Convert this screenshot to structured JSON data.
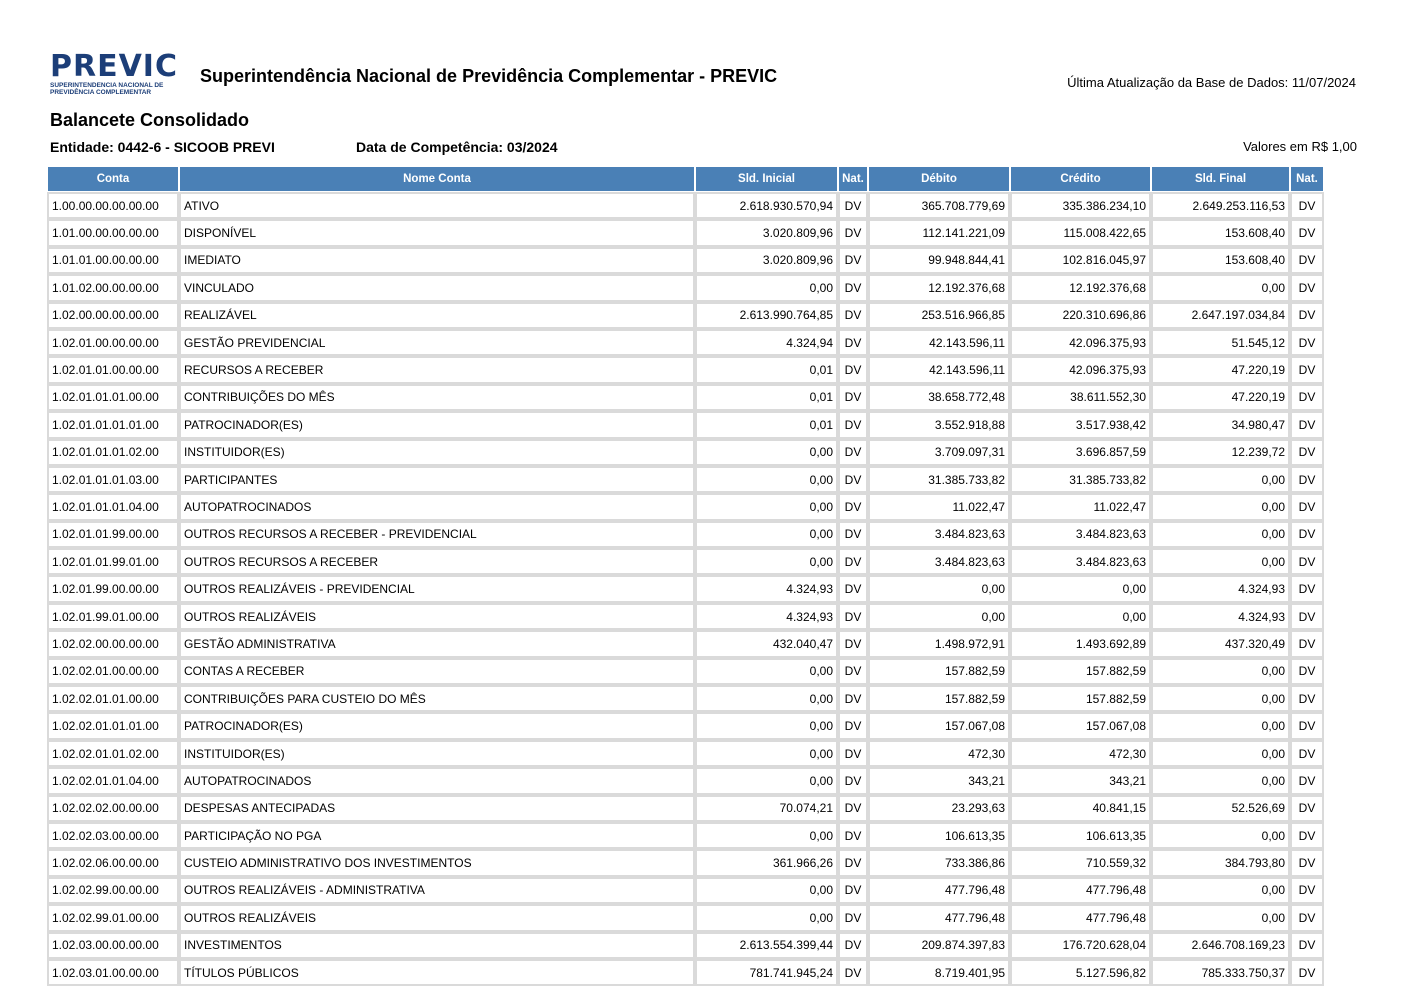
{
  "header": {
    "logo_text": "PREVIC",
    "logo_subtitle_1": "SUPERINTENDENCIA NACIONAL DE",
    "logo_subtitle_2": "PREVIDÊNCIA COMPLEMENTAR",
    "org_title": "Superintendência Nacional de Previdência Complementar - PREVIC",
    "last_update": "Última Atualização da Base de Dados: 11/07/2024"
  },
  "report": {
    "title": "Balancete Consolidado",
    "entity": "Entidade: 0442-6 - SICOOB PREVI",
    "competence": "Data de Competência: 03/2024",
    "units": "Valores em R$ 1,00"
  },
  "table": {
    "columns": [
      "Conta",
      "Nome Conta",
      "Sld. Inicial",
      "Nat.",
      "Débito",
      "Crédito",
      "Sld. Final",
      "Nat."
    ],
    "rows": [
      [
        "1.00.00.00.00.00.00",
        "ATIVO",
        "2.618.930.570,94",
        "DV",
        "365.708.779,69",
        "335.386.234,10",
        "2.649.253.116,53",
        "DV"
      ],
      [
        "1.01.00.00.00.00.00",
        "DISPONÍVEL",
        "3.020.809,96",
        "DV",
        "112.141.221,09",
        "115.008.422,65",
        "153.608,40",
        "DV"
      ],
      [
        "1.01.01.00.00.00.00",
        "IMEDIATO",
        "3.020.809,96",
        "DV",
        "99.948.844,41",
        "102.816.045,97",
        "153.608,40",
        "DV"
      ],
      [
        "1.01.02.00.00.00.00",
        "VINCULADO",
        "0,00",
        "DV",
        "12.192.376,68",
        "12.192.376,68",
        "0,00",
        "DV"
      ],
      [
        "1.02.00.00.00.00.00",
        "REALIZÁVEL",
        "2.613.990.764,85",
        "DV",
        "253.516.966,85",
        "220.310.696,86",
        "2.647.197.034,84",
        "DV"
      ],
      [
        "1.02.01.00.00.00.00",
        "GESTÃO PREVIDENCIAL",
        "4.324,94",
        "DV",
        "42.143.596,11",
        "42.096.375,93",
        "51.545,12",
        "DV"
      ],
      [
        "1.02.01.01.00.00.00",
        "RECURSOS A RECEBER",
        "0,01",
        "DV",
        "42.143.596,11",
        "42.096.375,93",
        "47.220,19",
        "DV"
      ],
      [
        "1.02.01.01.01.00.00",
        "CONTRIBUIÇÕES DO MÊS",
        "0,01",
        "DV",
        "38.658.772,48",
        "38.611.552,30",
        "47.220,19",
        "DV"
      ],
      [
        "1.02.01.01.01.01.00",
        "PATROCINADOR(ES)",
        "0,01",
        "DV",
        "3.552.918,88",
        "3.517.938,42",
        "34.980,47",
        "DV"
      ],
      [
        "1.02.01.01.01.02.00",
        "INSTITUIDOR(ES)",
        "0,00",
        "DV",
        "3.709.097,31",
        "3.696.857,59",
        "12.239,72",
        "DV"
      ],
      [
        "1.02.01.01.01.03.00",
        "PARTICIPANTES",
        "0,00",
        "DV",
        "31.385.733,82",
        "31.385.733,82",
        "0,00",
        "DV"
      ],
      [
        "1.02.01.01.01.04.00",
        "AUTOPATROCINADOS",
        "0,00",
        "DV",
        "11.022,47",
        "11.022,47",
        "0,00",
        "DV"
      ],
      [
        "1.02.01.01.99.00.00",
        "OUTROS RECURSOS A RECEBER - PREVIDENCIAL",
        "0,00",
        "DV",
        "3.484.823,63",
        "3.484.823,63",
        "0,00",
        "DV"
      ],
      [
        "1.02.01.01.99.01.00",
        "OUTROS RECURSOS A RECEBER",
        "0,00",
        "DV",
        "3.484.823,63",
        "3.484.823,63",
        "0,00",
        "DV"
      ],
      [
        "1.02.01.99.00.00.00",
        "OUTROS REALIZÁVEIS - PREVIDENCIAL",
        "4.324,93",
        "DV",
        "0,00",
        "0,00",
        "4.324,93",
        "DV"
      ],
      [
        "1.02.01.99.01.00.00",
        "OUTROS REALIZÁVEIS",
        "4.324,93",
        "DV",
        "0,00",
        "0,00",
        "4.324,93",
        "DV"
      ],
      [
        "1.02.02.00.00.00.00",
        "GESTÃO ADMINISTRATIVA",
        "432.040,47",
        "DV",
        "1.498.972,91",
        "1.493.692,89",
        "437.320,49",
        "DV"
      ],
      [
        "1.02.02.01.00.00.00",
        "CONTAS A RECEBER",
        "0,00",
        "DV",
        "157.882,59",
        "157.882,59",
        "0,00",
        "DV"
      ],
      [
        "1.02.02.01.01.00.00",
        "CONTRIBUIÇÕES PARA CUSTEIO DO MÊS",
        "0,00",
        "DV",
        "157.882,59",
        "157.882,59",
        "0,00",
        "DV"
      ],
      [
        "1.02.02.01.01.01.00",
        "PATROCINADOR(ES)",
        "0,00",
        "DV",
        "157.067,08",
        "157.067,08",
        "0,00",
        "DV"
      ],
      [
        "1.02.02.01.01.02.00",
        "INSTITUIDOR(ES)",
        "0,00",
        "DV",
        "472,30",
        "472,30",
        "0,00",
        "DV"
      ],
      [
        "1.02.02.01.01.04.00",
        "AUTOPATROCINADOS",
        "0,00",
        "DV",
        "343,21",
        "343,21",
        "0,00",
        "DV"
      ],
      [
        "1.02.02.02.00.00.00",
        "DESPESAS ANTECIPADAS",
        "70.074,21",
        "DV",
        "23.293,63",
        "40.841,15",
        "52.526,69",
        "DV"
      ],
      [
        "1.02.02.03.00.00.00",
        "PARTICIPAÇÃO NO PGA",
        "0,00",
        "DV",
        "106.613,35",
        "106.613,35",
        "0,00",
        "DV"
      ],
      [
        "1.02.02.06.00.00.00",
        "CUSTEIO ADMINISTRATIVO DOS INVESTIMENTOS",
        "361.966,26",
        "DV",
        "733.386,86",
        "710.559,32",
        "384.793,80",
        "DV"
      ],
      [
        "1.02.02.99.00.00.00",
        "OUTROS REALIZÁVEIS - ADMINISTRATIVA",
        "0,00",
        "DV",
        "477.796,48",
        "477.796,48",
        "0,00",
        "DV"
      ],
      [
        "1.02.02.99.01.00.00",
        "OUTROS REALIZÁVEIS",
        "0,00",
        "DV",
        "477.796,48",
        "477.796,48",
        "0,00",
        "DV"
      ],
      [
        "1.02.03.00.00.00.00",
        "INVESTIMENTOS",
        "2.613.554.399,44",
        "DV",
        "209.874.397,83",
        "176.720.628,04",
        "2.646.708.169,23",
        "DV"
      ],
      [
        "1.02.03.01.00.00.00",
        "TÍTULOS PÚBLICOS",
        "781.741.945,24",
        "DV",
        "8.719.401,95",
        "5.127.596,82",
        "785.333.750,37",
        "DV"
      ]
    ]
  },
  "colors": {
    "header_bg": "#4a80b6",
    "logo": "#1c3e78"
  }
}
